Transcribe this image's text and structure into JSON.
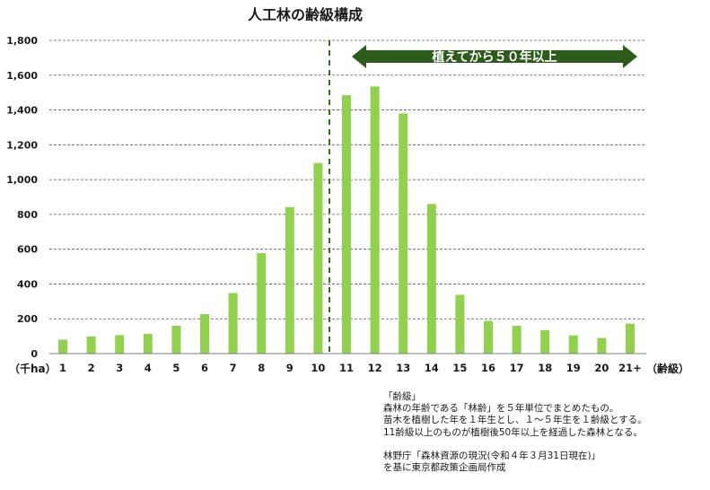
{
  "chart_data": {
    "type": "bar",
    "title": "人工林の齢級構成",
    "unit_label": "（千ha）",
    "x_unit_label": "（齢級）",
    "categories": [
      "1",
      "2",
      "3",
      "4",
      "5",
      "6",
      "7",
      "8",
      "9",
      "10",
      "11",
      "12",
      "13",
      "14",
      "15",
      "16",
      "17",
      "18",
      "19",
      "20",
      "21+"
    ],
    "values": [
      80,
      98,
      106,
      113,
      160,
      227,
      348,
      578,
      842,
      1095,
      1485,
      1535,
      1380,
      860,
      338,
      188,
      160,
      135,
      105,
      90,
      172
    ],
    "ylim": [
      0,
      1800
    ],
    "yticks": [
      "0",
      "200",
      "400",
      "600",
      "800",
      "1,000",
      "1,200",
      "1,400",
      "1,600",
      "1,800"
    ],
    "grid": true,
    "bar_color": "#92d050",
    "annotation": {
      "text": "植えてから５０年以上",
      "from_category": "11",
      "to_category": "21+",
      "color": "#2e5a1c"
    }
  },
  "notes": {
    "heading": "「齢級」",
    "lines": [
      "森林の年齢である「林齢」を５年単位でまとめたもの。",
      "苗木を植樹した年を１年生とし、１～５年生を１齢級とする。",
      "11齢級以上のものが植樹後50年以上を経過した森林となる。"
    ],
    "source_lines": [
      "林野庁「森林資源の現況(令和４年３月31日現在)」",
      "を基に東京都政策企画局作成"
    ]
  }
}
